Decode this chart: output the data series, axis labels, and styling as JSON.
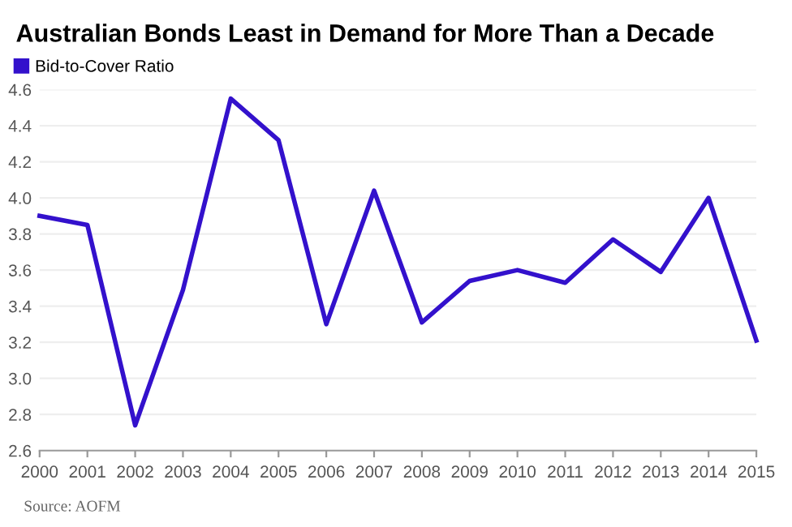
{
  "chart_data": {
    "type": "line",
    "title": "Australian Bonds Least in Demand for More Than a Decade",
    "x": [
      2000,
      2001,
      2002,
      2003,
      2004,
      2005,
      2006,
      2007,
      2008,
      2009,
      2010,
      2011,
      2012,
      2013,
      2014,
      2015
    ],
    "series": [
      {
        "name": "Bid-to-Cover Ratio",
        "color": "#3311cc",
        "values": [
          3.9,
          3.85,
          2.74,
          3.49,
          4.55,
          4.32,
          3.3,
          4.04,
          3.31,
          3.54,
          3.6,
          3.53,
          3.77,
          3.59,
          4.0,
          3.21
        ]
      }
    ],
    "xlim": [
      2000,
      2015
    ],
    "xticks": [
      2000,
      2001,
      2002,
      2003,
      2004,
      2005,
      2006,
      2007,
      2008,
      2009,
      2010,
      2011,
      2012,
      2013,
      2014,
      2015
    ],
    "ylim": [
      2.6,
      4.6
    ],
    "yticks": [
      2.6,
      2.8,
      {
        "value": 3,
        "label": "3.0"
      },
      3.2,
      3.4,
      3.6,
      3.8,
      {
        "value": 4,
        "label": "4.0"
      },
      4.2,
      4.4,
      4.6
    ],
    "grid": "y",
    "legend": "top left",
    "annotations": [
      "Source: AOFM"
    ]
  }
}
